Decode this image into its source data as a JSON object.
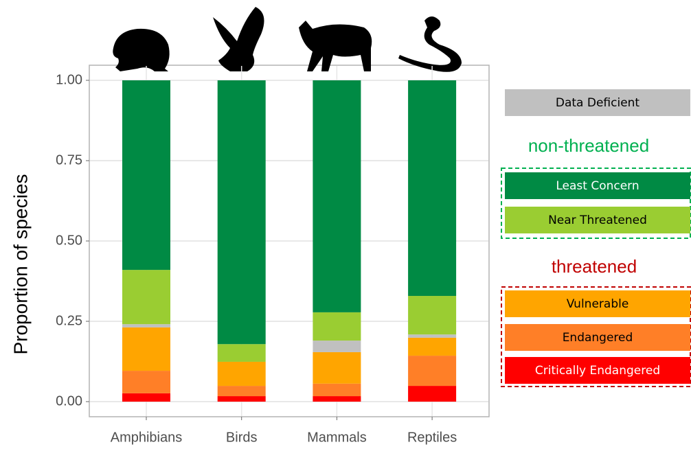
{
  "chart_data": {
    "type": "stacked_bar",
    "y_label": "Proportion of species",
    "categories": [
      "Amphibians",
      "Birds",
      "Mammals",
      "Reptiles"
    ],
    "series": [
      {
        "name": "Critically Endangered",
        "color": "#ff0000",
        "values": [
          0.026,
          0.017,
          0.017,
          0.049
        ]
      },
      {
        "name": "Endangered",
        "color": "#ff7f27",
        "values": [
          0.07,
          0.032,
          0.039,
          0.094
        ]
      },
      {
        "name": "Vulnerable",
        "color": "#ffa500",
        "values": [
          0.135,
          0.075,
          0.098,
          0.056
        ]
      },
      {
        "name": "Data Deficient",
        "color": "#c0c0c0",
        "values": [
          0.01,
          0,
          0.036,
          0.01
        ]
      },
      {
        "name": "Near Threatened",
        "color": "#9acd32",
        "values": [
          0.169,
          0.055,
          0.088,
          0.12
        ]
      },
      {
        "name": "Least Concern",
        "color": "#008a44",
        "values": [
          0.59,
          0.821,
          0.722,
          0.671
        ]
      }
    ],
    "ylim": [
      0,
      1
    ],
    "yticks": [
      {
        "value": 0,
        "label": "0.00"
      },
      {
        "value": 0.25,
        "label": "0.25"
      },
      {
        "value": 0.5,
        "label": "0.50"
      },
      {
        "value": 0.75,
        "label": "0.75"
      },
      {
        "value": 1,
        "label": "1.00"
      }
    ],
    "grid": true,
    "legend_groups": [
      {
        "label": "non-threatened",
        "color": "#00b050"
      },
      {
        "label": "threatened",
        "color": "#c00000"
      }
    ]
  }
}
